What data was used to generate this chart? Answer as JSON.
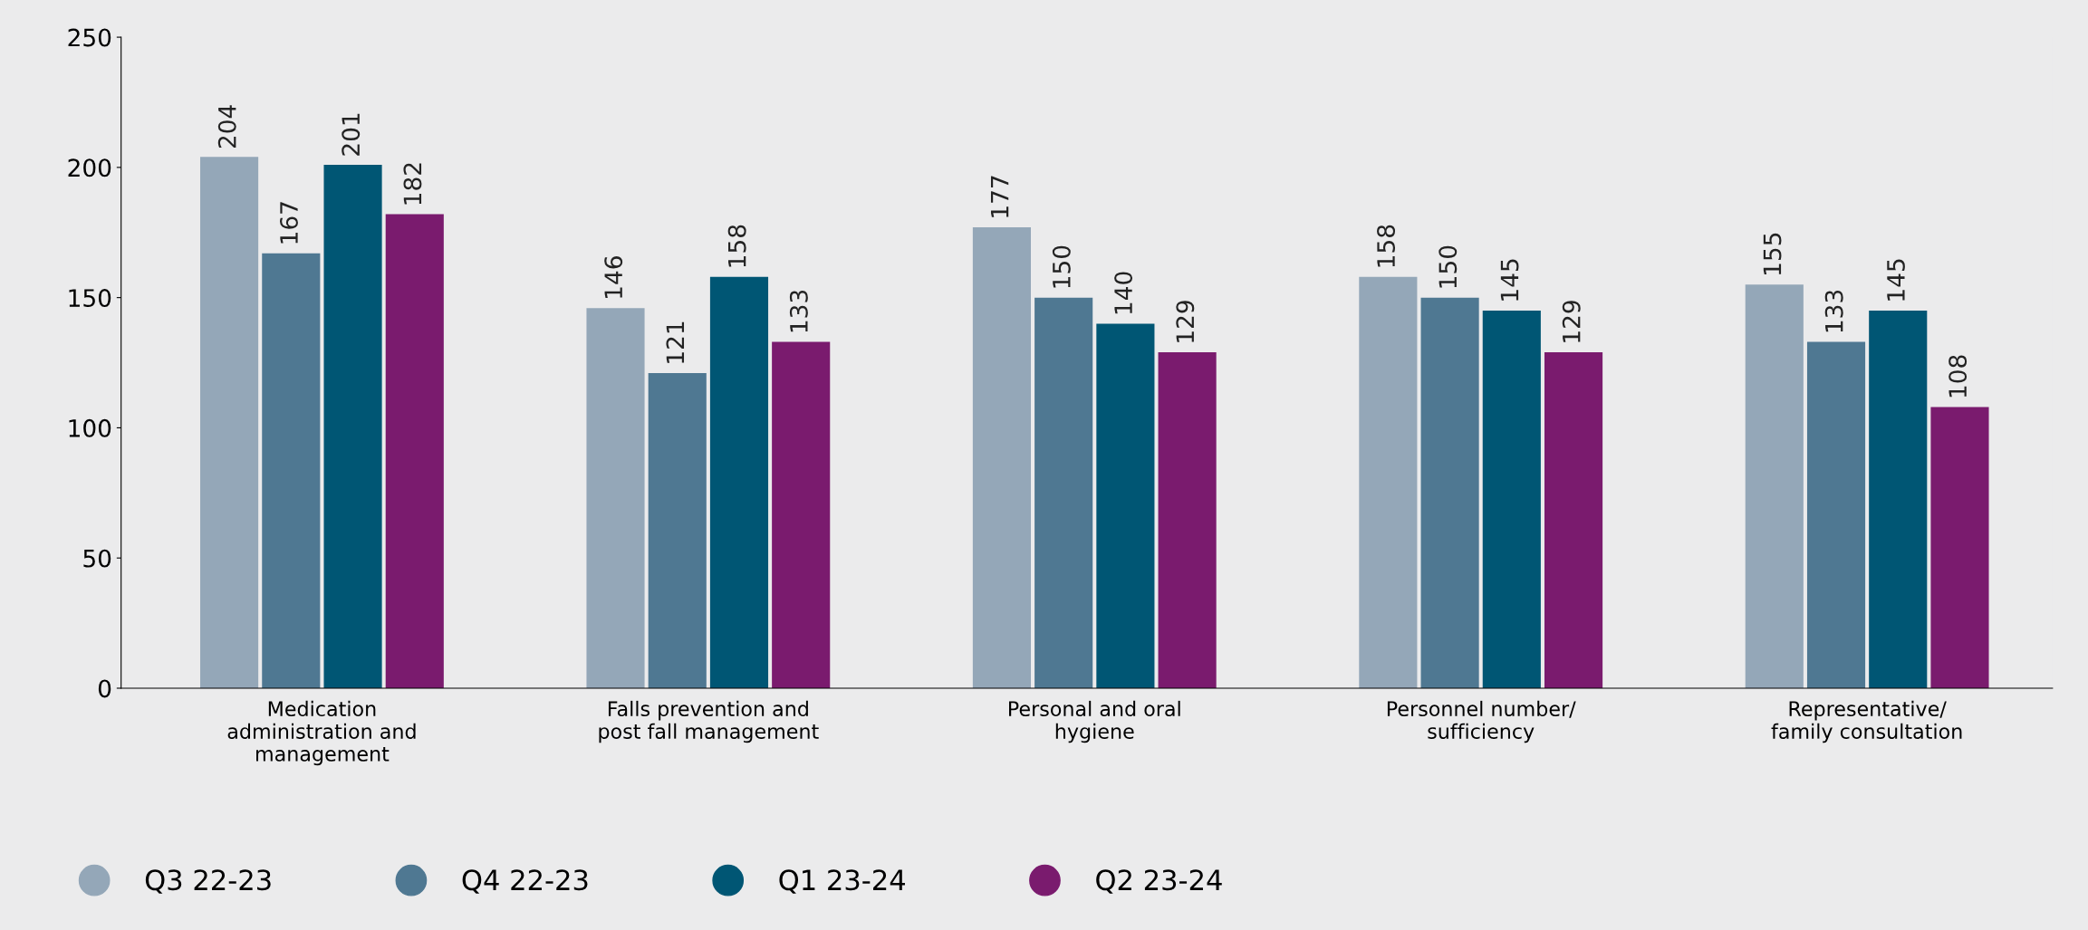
{
  "chart_data": {
    "type": "bar",
    "categories": [
      "Medication\nadministration and\nmanagement",
      "Falls prevention and\npost fall management",
      "Personal and oral\nhygiene",
      "Personnel number/\nsufficiency",
      "Representative/\nfamily consultation"
    ],
    "series": [
      {
        "name": "Q3 22-23",
        "color": "#94a7b8",
        "values": [
          204,
          146,
          177,
          158,
          155
        ]
      },
      {
        "name": "Q4 22-23",
        "color": "#4f7892",
        "values": [
          167,
          121,
          150,
          150,
          133
        ]
      },
      {
        "name": "Q1 23-24",
        "color": "#005674",
        "values": [
          201,
          158,
          140,
          145,
          145
        ]
      },
      {
        "name": "Q2 23-24",
        "color": "#7a1b6e",
        "values": [
          182,
          133,
          129,
          129,
          108
        ]
      }
    ],
    "ylim": [
      0,
      250
    ],
    "yticks": [
      0,
      50,
      100,
      150,
      200,
      250
    ],
    "data_labels": true,
    "grid": false,
    "legend": "bottom left"
  }
}
